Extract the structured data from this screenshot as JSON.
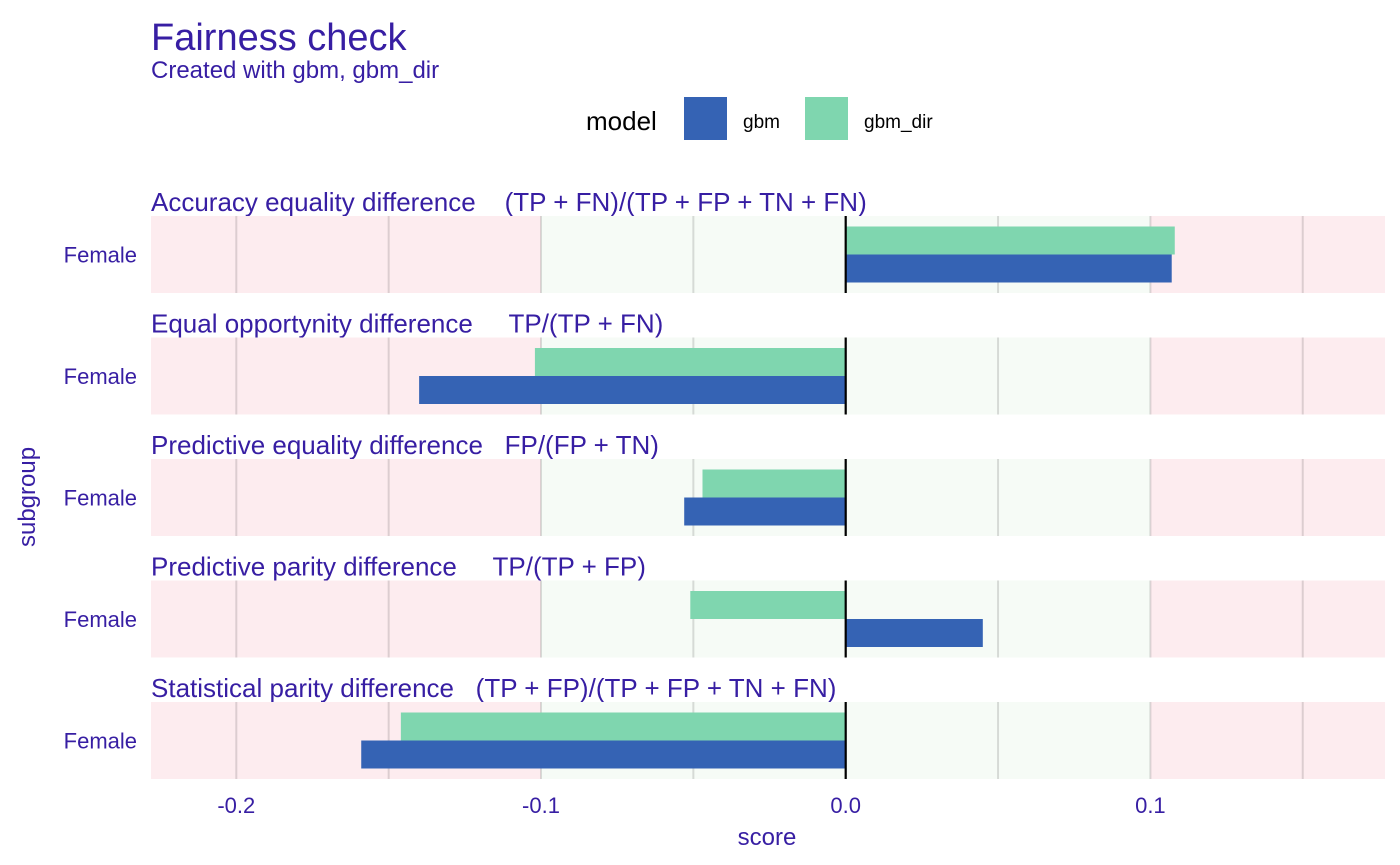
{
  "chart_data": {
    "type": "bar",
    "orientation": "horizontal",
    "title": "Fairness check",
    "subtitle": "Created with gbm, gbm_dir",
    "xlabel": "score",
    "ylabel": "subgroup",
    "xlim": [
      -0.228,
      0.177
    ],
    "xticks": [
      -0.2,
      -0.1,
      0.0,
      0.1
    ],
    "xtick_labels": [
      "-0.2",
      "-0.1",
      "0.0",
      "0.1"
    ],
    "acceptable_range": [
      -0.1,
      0.1
    ],
    "legend": {
      "title": "model",
      "position": "top",
      "entries": [
        {
          "name": "gbm",
          "color": "#3563B4"
        },
        {
          "name": "gbm_dir",
          "color": "#7FD6AF"
        }
      ]
    },
    "colors": {
      "text": "#371EA3",
      "fair_zone": "#F6FBF6",
      "unfair_zone": "#FDECEF",
      "zero_line": "#000000"
    },
    "facets": [
      {
        "title": "Accuracy equality difference    (TP + FN)/(TP + FP + TN + FN)",
        "subgroup": "Female",
        "values": {
          "gbm": 0.107,
          "gbm_dir": 0.108
        }
      },
      {
        "title": "Equal opportynity difference     TP/(TP + FN)",
        "subgroup": "Female",
        "values": {
          "gbm": -0.14,
          "gbm_dir": -0.102
        }
      },
      {
        "title": "Predictive equality difference   FP/(FP + TN)",
        "subgroup": "Female",
        "values": {
          "gbm": -0.053,
          "gbm_dir": -0.047
        }
      },
      {
        "title": "Predictive parity difference     TP/(TP + FP)",
        "subgroup": "Female",
        "values": {
          "gbm": 0.045,
          "gbm_dir": -0.051
        }
      },
      {
        "title": "Statistical parity difference   (TP + FP)/(TP + FP + TN + FN)",
        "subgroup": "Female",
        "values": {
          "gbm": -0.159,
          "gbm_dir": -0.146
        }
      }
    ]
  }
}
